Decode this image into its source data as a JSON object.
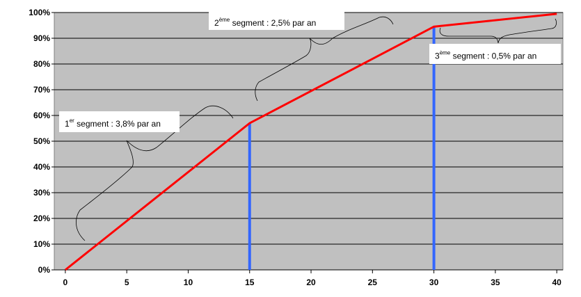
{
  "chart_data": {
    "type": "line",
    "x": [
      0,
      15,
      30,
      40
    ],
    "series": [
      {
        "color": "#ff0000",
        "values": [
          0,
          57,
          94.5,
          99.5
        ]
      }
    ],
    "vlines": {
      "color": "#3366ff",
      "x": [
        15,
        30
      ],
      "values": [
        57,
        94.5
      ]
    },
    "xlim": [
      -0.9,
      40.5
    ],
    "xticks": [
      0,
      5,
      10,
      15,
      20,
      25,
      30,
      35,
      40
    ],
    "ylim": [
      0,
      100
    ],
    "yticks": [
      {
        "value": 0,
        "label": "0%"
      },
      {
        "value": 10,
        "label": "10%"
      },
      {
        "value": 20,
        "label": "20%"
      },
      {
        "value": 30,
        "label": "30%"
      },
      {
        "value": 40,
        "label": "40%"
      },
      {
        "value": 50,
        "label": "50%"
      },
      {
        "value": 60,
        "label": "60%"
      },
      {
        "value": 70,
        "label": "70%"
      },
      {
        "value": 80,
        "label": "80%"
      },
      {
        "value": 90,
        "label": "90%"
      },
      {
        "value": 100,
        "label": "100%"
      }
    ],
    "grid": true,
    "annotations": [
      {
        "prefix": "1",
        "superscript": "er",
        "text": " segment : 3,8% par an"
      },
      {
        "prefix": "2",
        "superscript": "ème",
        "text": " segment : 2,5% par an"
      },
      {
        "prefix": "3",
        "superscript": "ème",
        "text": " segment : 0,5% par an"
      }
    ]
  }
}
